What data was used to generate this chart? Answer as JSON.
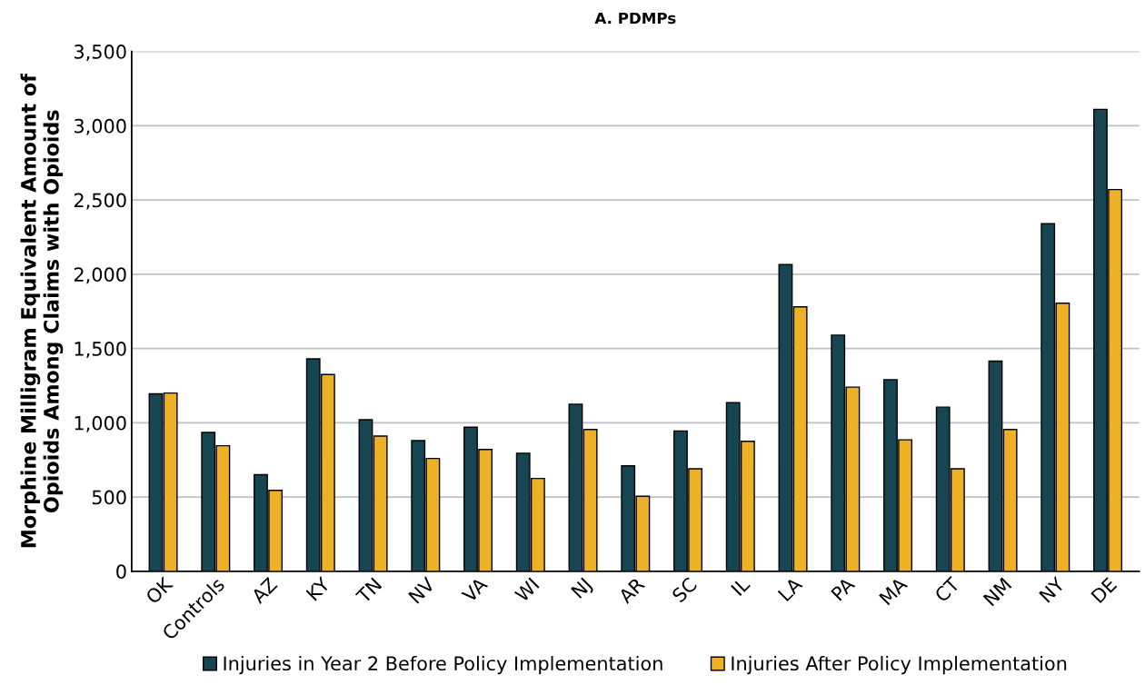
{
  "chart_data": {
    "type": "bar",
    "title": "A. PDMPs",
    "ylabel": "Morphine Milligram Equivalent Amount of\nOpioids Among Claims with Opioids",
    "categories": [
      "OK",
      "Controls",
      "AZ",
      "KY",
      "TN",
      "NV",
      "VA",
      "WI",
      "NJ",
      "AR",
      "SC",
      "IL",
      "LA",
      "PA",
      "MA",
      "CT",
      "NM",
      "NY",
      "DE"
    ],
    "series": [
      {
        "name": "Injuries in Year 2 Before Policy Implementation",
        "color": "#174652",
        "values": [
          1195,
          935,
          650,
          1430,
          1020,
          880,
          970,
          795,
          1125,
          710,
          945,
          1135,
          2065,
          1590,
          1290,
          1105,
          1415,
          2340,
          3110
        ]
      },
      {
        "name": "Injuries After Policy Implementation",
        "color": "#edb128",
        "values": [
          1200,
          845,
          545,
          1325,
          910,
          760,
          820,
          625,
          955,
          505,
          690,
          875,
          1780,
          1240,
          885,
          690,
          955,
          1805,
          2570
        ]
      }
    ],
    "ylim": [
      0,
      3500
    ],
    "yticks": [
      0,
      {
        "value": 500,
        "label": "500"
      },
      {
        "value": 1000,
        "label": "1,000"
      },
      {
        "value": 1500,
        "label": "1,500"
      },
      {
        "value": 2000,
        "label": "2,000"
      },
      {
        "value": 2500,
        "label": "2,500"
      },
      {
        "value": 3000,
        "label": "3,000"
      },
      {
        "value": 3500,
        "label": "3,500"
      }
    ],
    "grid": "y",
    "legend": "bottom"
  }
}
